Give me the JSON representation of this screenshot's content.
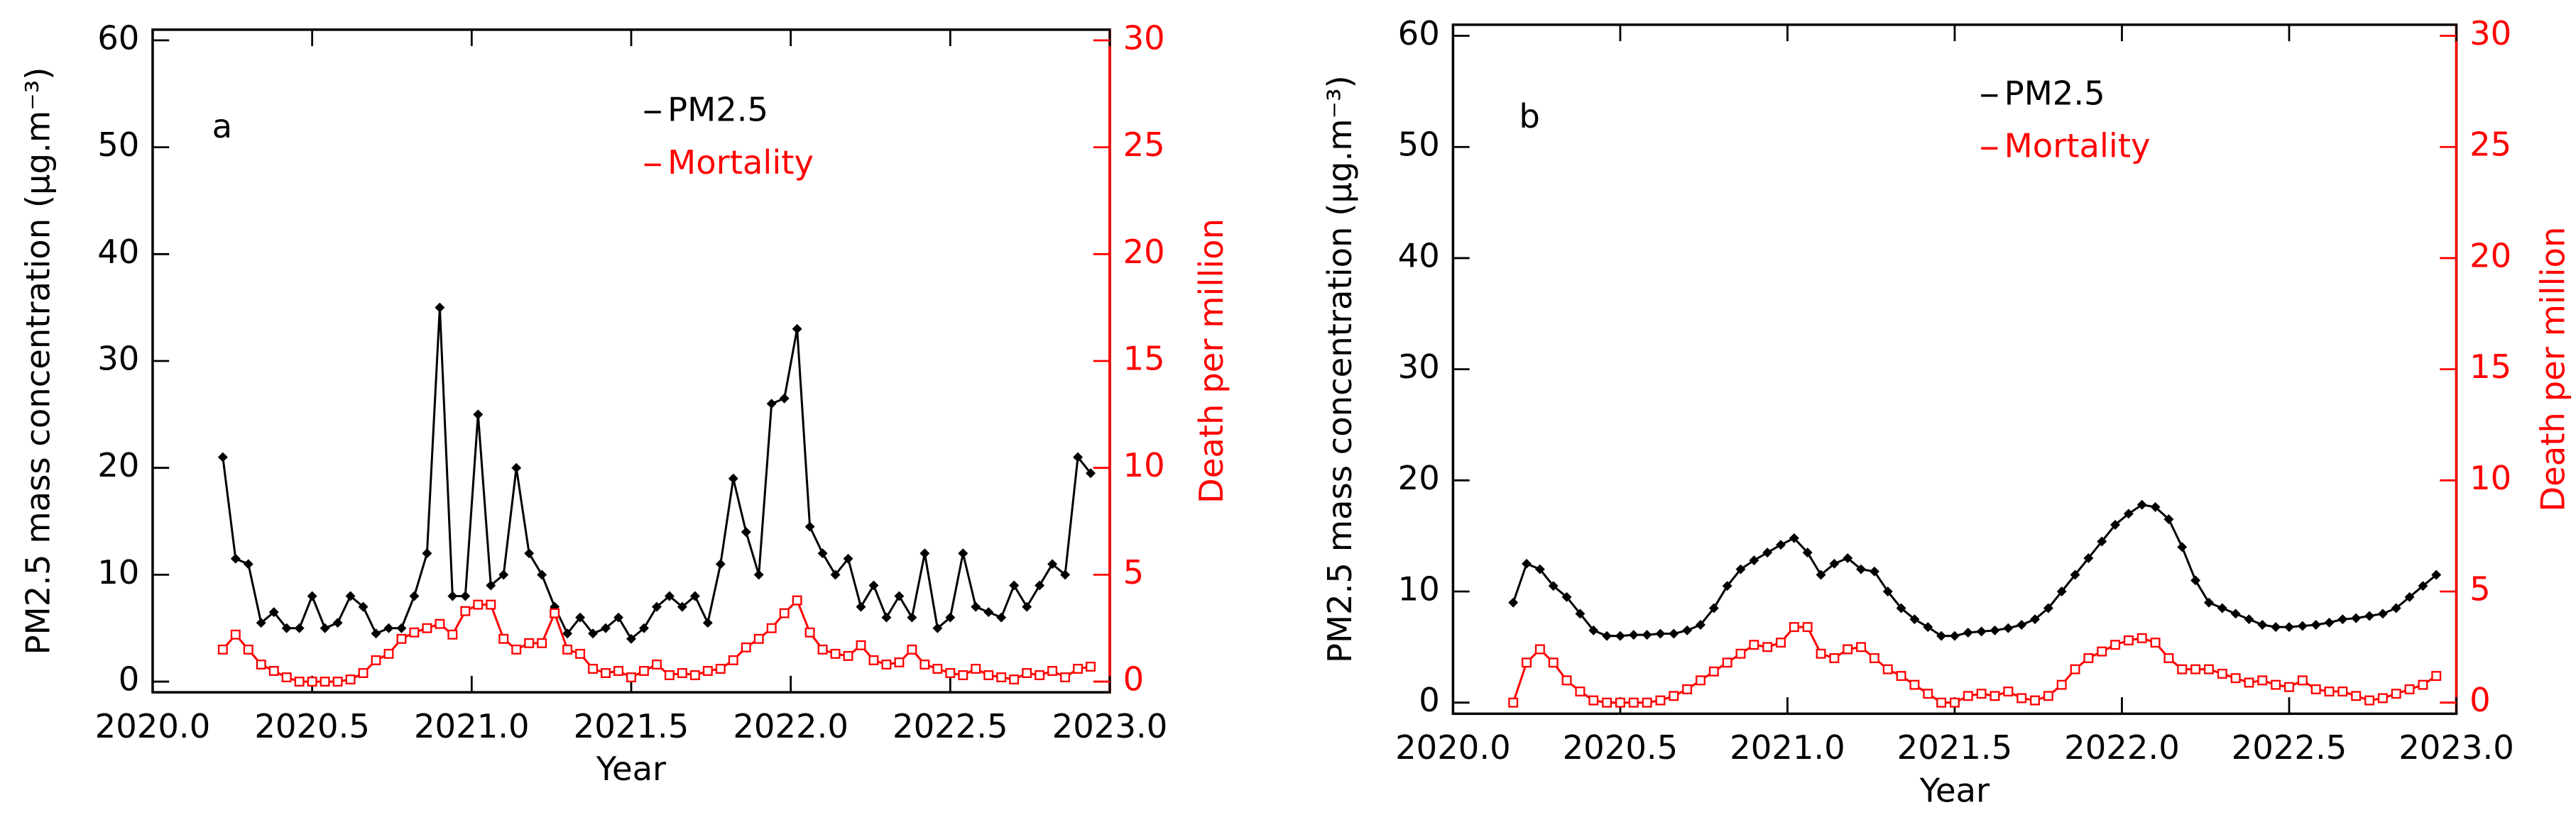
{
  "chart_data": [
    {
      "type": "line",
      "panel_label": "a",
      "xlabel": "Year",
      "ylabel": "PM2.5 mass concentration (μg.m⁻³)",
      "y2label": "Death per million",
      "xlim": [
        2020,
        2023
      ],
      "xticks": [
        {
          "value": 2020,
          "label": "2020.0"
        },
        {
          "value": 2020.5,
          "label": "2020.5"
        },
        {
          "value": 2021,
          "label": "2021.0"
        },
        {
          "value": 2021.5,
          "label": "2021.5"
        },
        {
          "value": 2022,
          "label": "2022.0"
        },
        {
          "value": 2022.5,
          "label": "2022.5"
        },
        {
          "value": 2023,
          "label": "2023.0"
        }
      ],
      "ylim": [
        -1,
        61
      ],
      "yticks": [
        0,
        10,
        20,
        30,
        40,
        50,
        60
      ],
      "y2lim": [
        -0.5,
        30.5
      ],
      "y2ticks": [
        0,
        5,
        10,
        15,
        20,
        25,
        30
      ],
      "x": [
        2020.22,
        2020.26,
        2020.3,
        2020.34,
        2020.38,
        2020.42,
        2020.46,
        2020.5,
        2020.54,
        2020.58,
        2020.62,
        2020.66,
        2020.7,
        2020.74,
        2020.78,
        2020.82,
        2020.86,
        2020.9,
        2020.94,
        2020.98,
        2021.02,
        2021.06,
        2021.1,
        2021.14,
        2021.18,
        2021.22,
        2021.26,
        2021.3,
        2021.34,
        2021.38,
        2021.42,
        2021.46,
        2021.5,
        2021.54,
        2021.58,
        2021.62,
        2021.66,
        2021.7,
        2021.74,
        2021.78,
        2021.82,
        2021.86,
        2021.9,
        2021.94,
        2021.98,
        2022.02,
        2022.06,
        2022.1,
        2022.14,
        2022.18,
        2022.22,
        2022.26,
        2022.3,
        2022.34,
        2022.38,
        2022.42,
        2022.46,
        2022.5,
        2022.54,
        2022.58,
        2022.62,
        2022.66,
        2022.7,
        2022.74,
        2022.78,
        2022.82,
        2022.86,
        2022.9,
        2022.94
      ],
      "series": [
        {
          "name": "PM2.5",
          "color": "#000000",
          "marker": "diamond",
          "values": [
            21,
            11.5,
            11,
            5.5,
            6.5,
            5,
            5,
            8,
            5,
            5.5,
            8,
            7,
            4.5,
            5,
            5,
            8,
            12,
            35,
            8,
            8,
            25,
            9,
            10,
            20,
            12,
            10,
            7,
            4.5,
            6,
            4.5,
            5,
            6,
            4,
            5,
            7,
            8,
            7,
            8,
            5.5,
            11,
            19,
            14,
            10,
            26,
            26.5,
            33,
            14.5,
            12,
            10,
            11.5,
            7,
            9,
            6,
            8,
            6,
            12,
            5,
            6,
            12,
            7,
            6.5,
            6,
            9,
            7,
            9,
            11,
            10,
            21,
            19.5
          ]
        },
        {
          "name": "Mortality",
          "color": "#ff0000",
          "marker": "square",
          "axis": "y2",
          "values": [
            1.5,
            2.2,
            1.5,
            0.8,
            0.5,
            0.2,
            0,
            0,
            0,
            0,
            0.1,
            0.4,
            1,
            1.3,
            2,
            2.3,
            2.5,
            2.7,
            2.2,
            3.3,
            3.6,
            3.6,
            2,
            1.5,
            1.8,
            1.8,
            3.2,
            1.5,
            1.3,
            0.6,
            0.4,
            0.5,
            0.2,
            0.5,
            0.8,
            0.3,
            0.4,
            0.3,
            0.5,
            0.6,
            1,
            1.6,
            2,
            2.5,
            3.2,
            3.8,
            2.3,
            1.5,
            1.3,
            1.2,
            1.7,
            1,
            0.8,
            0.9,
            1.5,
            0.8,
            0.6,
            0.4,
            0.3,
            0.6,
            0.3,
            0.2,
            0.1,
            0.4,
            0.3,
            0.5,
            0.2,
            0.6,
            0.7
          ]
        }
      ]
    },
    {
      "type": "line",
      "panel_label": "b",
      "xlabel": "Year",
      "ylabel": "PM2.5 mass concentration (μg.m⁻³)",
      "y2label": "Death per million",
      "xlim": [
        2020,
        2023
      ],
      "xticks": [
        {
          "value": 2020,
          "label": "2020.0"
        },
        {
          "value": 2020.5,
          "label": "2020.5"
        },
        {
          "value": 2021,
          "label": "2021.0"
        },
        {
          "value": 2021.5,
          "label": "2021.5"
        },
        {
          "value": 2022,
          "label": "2022.0"
        },
        {
          "value": 2022.5,
          "label": "2022.5"
        },
        {
          "value": 2023,
          "label": "2023.0"
        }
      ],
      "ylim": [
        -1,
        61
      ],
      "yticks": [
        0,
        10,
        20,
        30,
        40,
        50,
        60
      ],
      "y2lim": [
        -0.5,
        30.5
      ],
      "y2ticks": [
        0,
        5,
        10,
        15,
        20,
        25,
        30
      ],
      "x": [
        2020.18,
        2020.22,
        2020.26,
        2020.3,
        2020.34,
        2020.38,
        2020.42,
        2020.46,
        2020.5,
        2020.54,
        2020.58,
        2020.62,
        2020.66,
        2020.7,
        2020.74,
        2020.78,
        2020.82,
        2020.86,
        2020.9,
        2020.94,
        2020.98,
        2021.02,
        2021.06,
        2021.1,
        2021.14,
        2021.18,
        2021.22,
        2021.26,
        2021.3,
        2021.34,
        2021.38,
        2021.42,
        2021.46,
        2021.5,
        2021.54,
        2021.58,
        2021.62,
        2021.66,
        2021.7,
        2021.74,
        2021.78,
        2021.82,
        2021.86,
        2021.9,
        2021.94,
        2021.98,
        2022.02,
        2022.06,
        2022.1,
        2022.14,
        2022.18,
        2022.22,
        2022.26,
        2022.3,
        2022.34,
        2022.38,
        2022.42,
        2022.46,
        2022.5,
        2022.54,
        2022.58,
        2022.62,
        2022.66,
        2022.7,
        2022.74,
        2022.78,
        2022.82,
        2022.86,
        2022.9,
        2022.94
      ],
      "series": [
        {
          "name": "PM2.5",
          "color": "#000000",
          "marker": "diamond",
          "values": [
            9,
            12.5,
            12,
            10.5,
            9.5,
            8,
            6.5,
            6,
            6,
            6.1,
            6.1,
            6.2,
            6.2,
            6.5,
            7,
            8.5,
            10.5,
            12,
            12.8,
            13.5,
            14.2,
            14.8,
            13.5,
            11.5,
            12.5,
            13,
            12,
            11.8,
            10,
            8.5,
            7.5,
            6.8,
            6,
            6,
            6.3,
            6.4,
            6.5,
            6.7,
            7,
            7.5,
            8.5,
            10,
            11.5,
            13,
            14.5,
            16,
            17,
            17.8,
            17.6,
            16.5,
            14,
            11,
            9,
            8.5,
            8,
            7.5,
            7,
            6.8,
            6.8,
            6.9,
            7,
            7.2,
            7.5,
            7.6,
            7.8,
            8,
            8.5,
            9.5,
            10.5,
            11.5
          ]
        },
        {
          "name": "Mortality",
          "color": "#ff0000",
          "marker": "square",
          "axis": "y2",
          "values": [
            0,
            1.8,
            2.4,
            1.8,
            1,
            0.5,
            0.1,
            0,
            0,
            0,
            0,
            0.1,
            0.3,
            0.6,
            1,
            1.4,
            1.8,
            2.2,
            2.6,
            2.5,
            2.7,
            3.4,
            3.4,
            2.2,
            2,
            2.4,
            2.5,
            2,
            1.5,
            1.2,
            0.8,
            0.4,
            0,
            0,
            0.3,
            0.4,
            0.3,
            0.5,
            0.2,
            0.1,
            0.3,
            0.8,
            1.5,
            2,
            2.3,
            2.6,
            2.8,
            2.9,
            2.7,
            2,
            1.5,
            1.5,
            1.5,
            1.3,
            1.1,
            0.9,
            1,
            0.8,
            0.7,
            1,
            0.6,
            0.5,
            0.5,
            0.3,
            0.1,
            0.2,
            0.4,
            0.6,
            0.8,
            1.2
          ]
        }
      ]
    }
  ]
}
